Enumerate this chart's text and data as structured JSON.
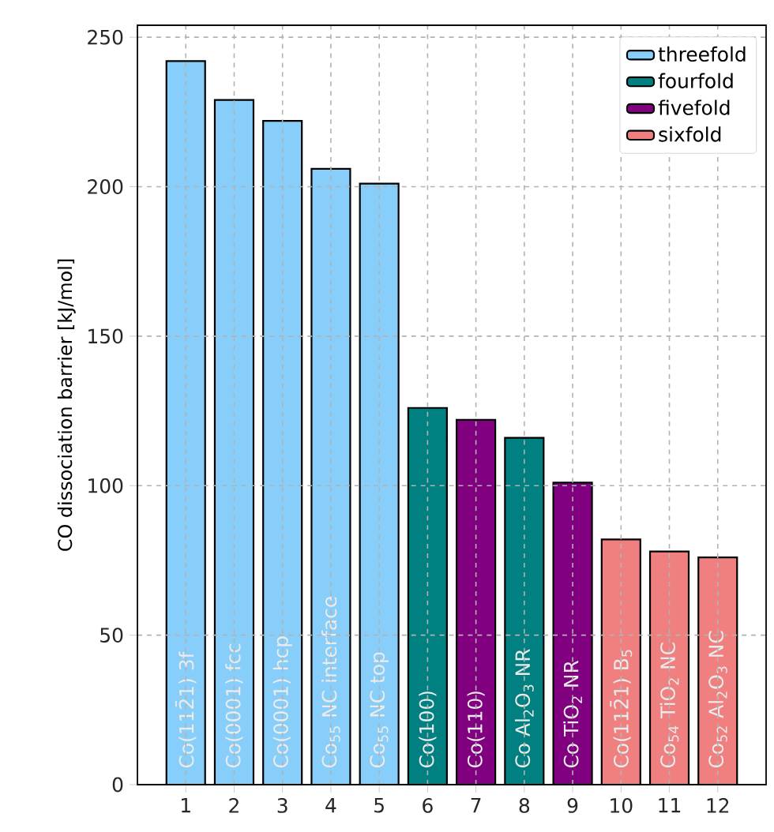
{
  "chart_data": {
    "type": "bar",
    "ylabel": "CO dissociation barrier [kJ/mol]",
    "series": [
      {
        "name": "threefold",
        "color": "#87cefa",
        "x": [
          1,
          2,
          3,
          4,
          5
        ],
        "values": [
          242,
          229,
          222,
          206,
          201
        ]
      },
      {
        "name": "fourfold",
        "color": "#008080",
        "x": [
          6,
          8
        ],
        "values": [
          126,
          116
        ]
      },
      {
        "name": "fivefold",
        "color": "#800080",
        "x": [
          7,
          9
        ],
        "values": [
          122,
          101
        ]
      },
      {
        "name": "sixfold",
        "color": "#f08080",
        "x": [
          10,
          11,
          12
        ],
        "values": [
          82,
          78,
          76
        ]
      }
    ],
    "annotations": [
      "Co(112̄1) 3f",
      "Co(0001) fcc",
      "Co(0001) hcp",
      "Co$_{55}$ NC interface",
      "Co$_{55}$ NC top",
      "Co(100)",
      "Co(110)",
      "Co Al$_{2}$O$_{3}$ NR",
      "Co TiO$_{2}$ NR",
      "Co(112̄1) B$_{5}$",
      "Co$_{54}$ TiO$_{2}$ NC",
      "Co$_{52}$ Al$_{2}$O$_{3}$ NC"
    ],
    "xlim": [
      0,
      13
    ],
    "xticks": [
      1,
      2,
      3,
      4,
      5,
      6,
      7,
      8,
      9,
      10,
      11,
      12
    ],
    "ylim": [
      0,
      254
    ],
    "yticks": [
      0,
      50,
      100,
      150,
      200,
      250
    ],
    "grid": true,
    "legend": "top right"
  }
}
